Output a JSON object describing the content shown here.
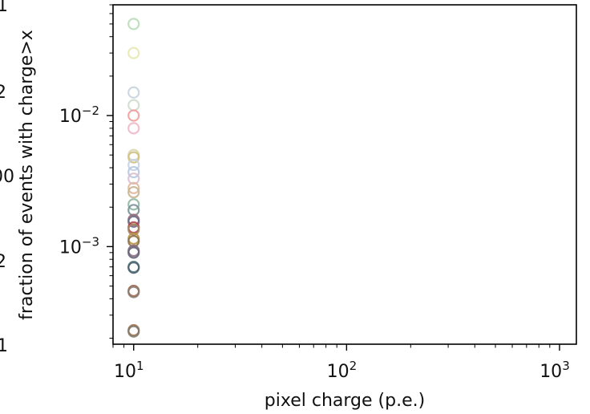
{
  "edge_labels": [
    "1",
    "2",
    "00",
    "2",
    "1"
  ],
  "chart_data": {
    "type": "scatter",
    "xlabel": "pixel charge (p.e.)",
    "ylabel": "fraction of events with charge>x",
    "xscale": "log",
    "yscale": "log",
    "xlim": [
      8,
      1200
    ],
    "ylim": [
      0.00018,
      0.07
    ],
    "x_ticks": [
      {
        "base": "10",
        "exp": "1",
        "value": 10
      },
      {
        "base": "10",
        "exp": "2",
        "value": 100
      },
      {
        "base": "10",
        "exp": "3",
        "value": 1000
      }
    ],
    "y_ticks": [
      {
        "base": "10",
        "exp": "−3",
        "value": 0.001
      },
      {
        "base": "10",
        "exp": "−2",
        "value": 0.01
      }
    ],
    "marker": "hollow-circle",
    "points": [
      {
        "x": 10,
        "y": 0.05,
        "color": "#b9ddb9"
      },
      {
        "x": 10,
        "y": 0.03,
        "color": "#e8e8b2"
      },
      {
        "x": 10,
        "y": 0.015,
        "color": "#c8d4de"
      },
      {
        "x": 10,
        "y": 0.012,
        "color": "#cfdccf"
      },
      {
        "x": 10,
        "y": 0.01,
        "color": "#f0a0a0"
      },
      {
        "x": 10,
        "y": 0.008,
        "color": "#f0b8c8"
      },
      {
        "x": 10,
        "y": 0.005,
        "color": "#d8d4b0"
      },
      {
        "x": 10,
        "y": 0.0048,
        "color": "#d2c080"
      },
      {
        "x": 10,
        "y": 0.0042,
        "color": "#c4d0e8"
      },
      {
        "x": 10,
        "y": 0.0037,
        "color": "#b4c6e0"
      },
      {
        "x": 10,
        "y": 0.0033,
        "color": "#d8c0d0"
      },
      {
        "x": 10,
        "y": 0.0028,
        "color": "#e0b89c"
      },
      {
        "x": 10,
        "y": 0.0026,
        "color": "#c8b490"
      },
      {
        "x": 10,
        "y": 0.0021,
        "color": "#90b8a4"
      },
      {
        "x": 10,
        "y": 0.0019,
        "color": "#7a9098"
      },
      {
        "x": 10,
        "y": 0.0016,
        "color": "#9c6a74"
      },
      {
        "x": 10,
        "y": 0.00155,
        "color": "#6c6c88"
      },
      {
        "x": 10,
        "y": 0.0014,
        "color": "#b04848"
      },
      {
        "x": 10,
        "y": 0.00135,
        "color": "#a48464"
      },
      {
        "x": 10,
        "y": 0.00115,
        "color": "#b89448"
      },
      {
        "x": 10,
        "y": 0.0011,
        "color": "#8c7048"
      },
      {
        "x": 10,
        "y": 0.00093,
        "color": "#8a6a82"
      },
      {
        "x": 10,
        "y": 0.0009,
        "color": "#646478"
      },
      {
        "x": 10,
        "y": 0.0007,
        "color": "#5a7c84"
      },
      {
        "x": 10,
        "y": 0.00069,
        "color": "#4c6470"
      },
      {
        "x": 10,
        "y": 0.00046,
        "color": "#a46a4a"
      },
      {
        "x": 10,
        "y": 0.00045,
        "color": "#887a70"
      },
      {
        "x": 10,
        "y": 0.00023,
        "color": "#a27050"
      },
      {
        "x": 10,
        "y": 0.000225,
        "color": "#7c7a6a"
      }
    ]
  }
}
